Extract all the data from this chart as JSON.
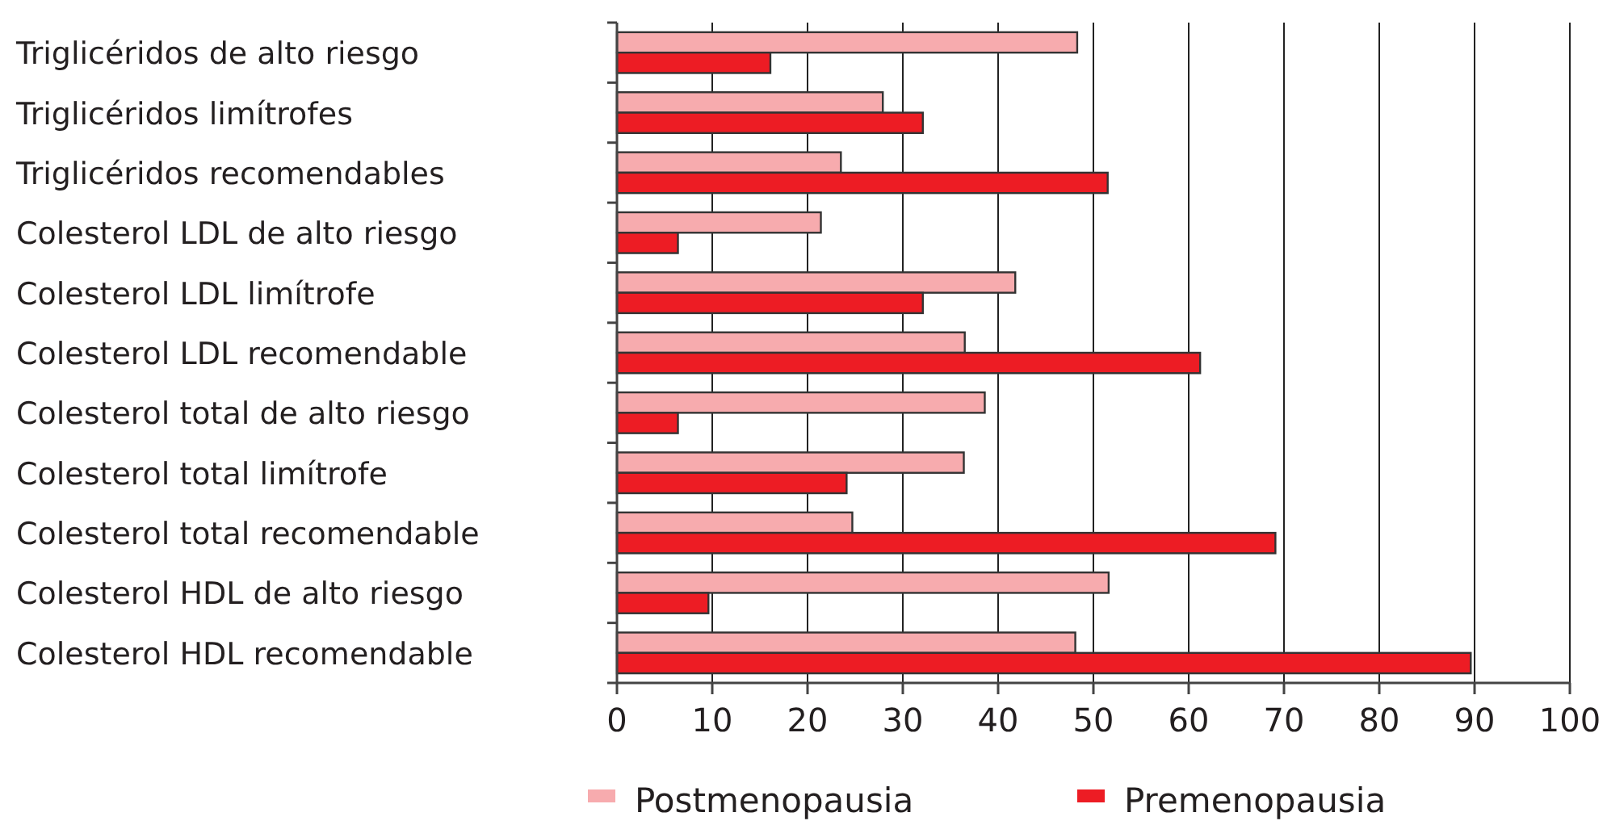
{
  "chart_data": {
    "type": "bar",
    "orientation": "horizontal",
    "categories": [
      "Triglicéridos de alto riesgo",
      "Triglicéridos limítrofes",
      "Triglicéridos recomendables",
      "Colesterol LDL de alto riesgo",
      "Colesterol LDL limítrofe",
      "Colesterol LDL recomendable",
      "Colesterol total de alto riesgo",
      "Colesterol total limítrofe",
      "Colesterol total recomendable",
      "Colesterol HDL de alto riesgo",
      "Colesterol HDL recomendable"
    ],
    "series": [
      {
        "name": "Postmenopausia",
        "color": "#f7abae",
        "values": [
          48.3,
          27.9,
          23.5,
          21.4,
          41.8,
          36.5,
          38.6,
          36.4,
          24.7,
          51.6,
          48.1
        ]
      },
      {
        "name": "Premenopausia",
        "color": "#ed1c24",
        "values": [
          16.1,
          32.1,
          51.5,
          6.4,
          32.1,
          61.2,
          6.4,
          24.1,
          69.1,
          9.6,
          89.6
        ]
      }
    ],
    "xlim": [
      0,
      100
    ],
    "xticks": [
      0,
      10,
      20,
      30,
      40,
      50,
      60,
      70,
      80,
      90,
      100
    ],
    "grid": "x",
    "legend": "bottom"
  }
}
